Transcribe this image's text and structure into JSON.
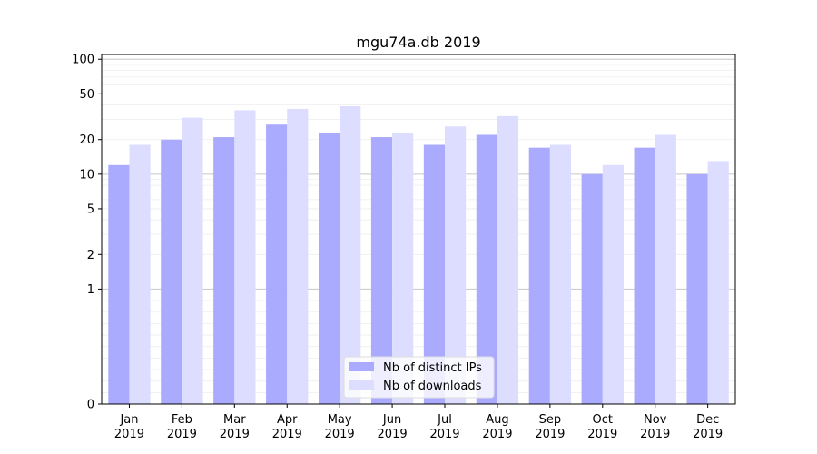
{
  "chart_data": {
    "type": "bar",
    "title": "mgu74a.db 2019",
    "xlabel": "",
    "ylabel": "",
    "yscale": "symlog",
    "ylim": [
      0,
      110
    ],
    "yticks": [
      0,
      1,
      2,
      5,
      10,
      20,
      50,
      100
    ],
    "ytick_labels": [
      "0",
      "1",
      "2",
      "5",
      "10",
      "20",
      "50",
      "100"
    ],
    "grid": true,
    "legend_position": "bottom-center",
    "categories": [
      "Jan\n2019",
      "Feb\n2019",
      "Mar\n2019",
      "Apr\n2019",
      "May\n2019",
      "Jun\n2019",
      "Jul\n2019",
      "Aug\n2019",
      "Sep\n2019",
      "Oct\n2019",
      "Nov\n2019",
      "Dec\n2019"
    ],
    "series": [
      {
        "name": "Nb of distinct IPs",
        "color": "#aaaaff",
        "values": [
          12,
          20,
          21,
          27,
          23,
          21,
          18,
          22,
          17,
          10,
          17,
          10
        ]
      },
      {
        "name": "Nb of downloads",
        "color": "#ddddff",
        "values": [
          18,
          31,
          36,
          37,
          39,
          23,
          26,
          32,
          18,
          12,
          22,
          13
        ]
      }
    ]
  }
}
